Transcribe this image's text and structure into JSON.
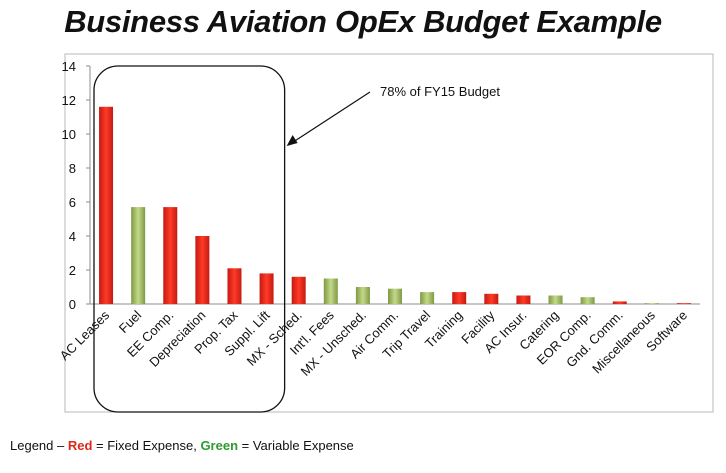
{
  "title": "Business Aviation OpEx Budget Example",
  "chart_data": {
    "type": "bar",
    "title": "Business Aviation OpEx Budget Example",
    "xlabel": "",
    "ylabel": "",
    "ylim": [
      0,
      14
    ],
    "yticks": [
      0,
      2,
      4,
      6,
      8,
      10,
      12,
      14
    ],
    "grid": false,
    "categories": [
      "AC Leases",
      "Fuel",
      "EE Comp.",
      "Depreciation",
      "Prop. Tax",
      "Suppl. Lift",
      "MX - Sched.",
      "Int'l. Fees",
      "MX - Unsched.",
      "Air Comm.",
      "Trip Travel",
      "Training",
      "Facility",
      "AC Insur.",
      "Catering",
      "EOR Comp.",
      "Gnd. Comm.",
      "Miscellaneous",
      "Software"
    ],
    "values": [
      11.6,
      5.7,
      5.7,
      4.0,
      2.1,
      1.8,
      1.6,
      1.5,
      1.0,
      0.9,
      0.7,
      0.7,
      0.6,
      0.5,
      0.5,
      0.4,
      0.15,
      0.05,
      0.05
    ],
    "expense_type": [
      "fixed",
      "variable",
      "fixed",
      "fixed",
      "fixed",
      "fixed",
      "fixed",
      "variable",
      "variable",
      "variable",
      "variable",
      "fixed",
      "fixed",
      "fixed",
      "variable",
      "variable",
      "fixed",
      "variable",
      "fixed"
    ],
    "colors": {
      "fixed": "#e8281c",
      "variable": "#9cb85a"
    },
    "annotation": "78% of FY15 Budget"
  },
  "legend": {
    "prefix": "Legend – ",
    "red_word": "Red",
    "red_text": " = Fixed Expense, ",
    "green_word": "Green",
    "green_text": " = Variable Expense"
  }
}
